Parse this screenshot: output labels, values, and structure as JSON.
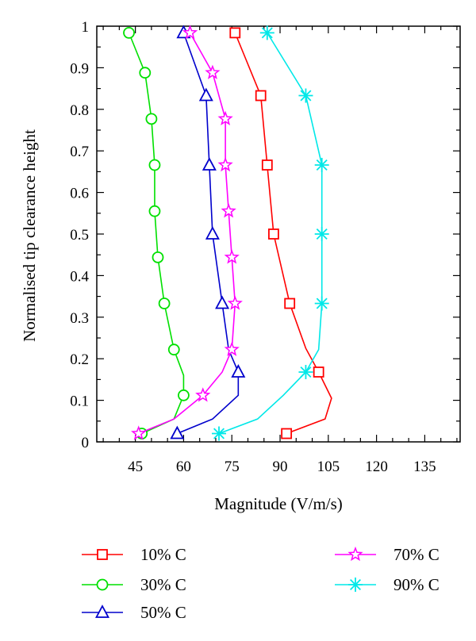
{
  "chart_data": {
    "type": "line",
    "title": "",
    "xlabel": "Magnitude (V/m/s)",
    "ylabel": "Normalised tip clearance height",
    "xlim": [
      33,
      146
    ],
    "ylim": [
      0,
      1
    ],
    "xticks": [
      "45",
      "60",
      "75",
      "90",
      "105",
      "120",
      "135"
    ],
    "yticks": [
      "0",
      "0.1",
      "0.2",
      "0.3",
      "0.4",
      "0.5",
      "0.6",
      "0.7",
      "0.8",
      "0.9",
      "1"
    ],
    "grid": false,
    "legend_position": "bottom",
    "series": [
      {
        "name": "10% C",
        "color": "#ff0000",
        "marker": "square",
        "line": [
          [
            92,
            0.02
          ],
          [
            104,
            0.055
          ],
          [
            106,
            0.105
          ],
          [
            102,
            0.168
          ],
          [
            98,
            0.225
          ],
          [
            93,
            0.333
          ],
          [
            88,
            0.5
          ],
          [
            86,
            0.666
          ],
          [
            84,
            0.833
          ],
          [
            76,
            0.984
          ]
        ],
        "markers": [
          [
            92,
            0.02
          ],
          [
            102,
            0.168
          ],
          [
            93,
            0.333
          ],
          [
            88,
            0.5
          ],
          [
            86,
            0.666
          ],
          [
            84,
            0.833
          ],
          [
            76,
            0.984
          ]
        ]
      },
      {
        "name": "30% C",
        "color": "#00e000",
        "marker": "circle",
        "line": [
          [
            47,
            0.02
          ],
          [
            57,
            0.055
          ],
          [
            60,
            0.112
          ],
          [
            60,
            0.16
          ],
          [
            57,
            0.222
          ],
          [
            54,
            0.333
          ],
          [
            52,
            0.444
          ],
          [
            51,
            0.555
          ],
          [
            51,
            0.666
          ],
          [
            50,
            0.777
          ],
          [
            48,
            0.888
          ],
          [
            43,
            0.984
          ]
        ],
        "markers": [
          [
            47,
            0.02
          ],
          [
            60,
            0.112
          ],
          [
            57,
            0.222
          ],
          [
            54,
            0.333
          ],
          [
            52,
            0.444
          ],
          [
            51,
            0.555
          ],
          [
            51,
            0.666
          ],
          [
            50,
            0.777
          ],
          [
            48,
            0.888
          ],
          [
            43,
            0.984
          ]
        ]
      },
      {
        "name": "50% C",
        "color": "#0000cc",
        "marker": "triangle",
        "line": [
          [
            58,
            0.02
          ],
          [
            69,
            0.055
          ],
          [
            77,
            0.112
          ],
          [
            77,
            0.168
          ],
          [
            74,
            0.222
          ],
          [
            72,
            0.333
          ],
          [
            69,
            0.5
          ],
          [
            68,
            0.666
          ],
          [
            67,
            0.833
          ],
          [
            60,
            0.984
          ]
        ],
        "markers": [
          [
            58,
            0.02
          ],
          [
            77,
            0.168
          ],
          [
            72,
            0.333
          ],
          [
            69,
            0.5
          ],
          [
            68,
            0.666
          ],
          [
            67,
            0.833
          ],
          [
            60,
            0.984
          ]
        ]
      },
      {
        "name": "70% C",
        "color": "#ff00ff",
        "marker": "star",
        "line": [
          [
            46,
            0.02
          ],
          [
            57,
            0.055
          ],
          [
            66,
            0.112
          ],
          [
            72,
            0.168
          ],
          [
            75,
            0.222
          ],
          [
            76,
            0.333
          ],
          [
            75,
            0.444
          ],
          [
            74,
            0.555
          ],
          [
            73,
            0.666
          ],
          [
            73,
            0.777
          ],
          [
            69,
            0.888
          ],
          [
            62,
            0.984
          ]
        ],
        "markers": [
          [
            46,
            0.02
          ],
          [
            66,
            0.112
          ],
          [
            75,
            0.222
          ],
          [
            76,
            0.333
          ],
          [
            75,
            0.444
          ],
          [
            74,
            0.555
          ],
          [
            73,
            0.666
          ],
          [
            73,
            0.777
          ],
          [
            69,
            0.888
          ],
          [
            62,
            0.984
          ]
        ]
      },
      {
        "name": "90% C",
        "color": "#00e8e8",
        "marker": "asterisk",
        "line": [
          [
            71,
            0.02
          ],
          [
            83,
            0.055
          ],
          [
            91,
            0.112
          ],
          [
            98,
            0.168
          ],
          [
            102,
            0.222
          ],
          [
            103,
            0.333
          ],
          [
            103,
            0.5
          ],
          [
            103,
            0.666
          ],
          [
            98,
            0.833
          ],
          [
            86,
            0.984
          ]
        ],
        "markers": [
          [
            71,
            0.02
          ],
          [
            98,
            0.168
          ],
          [
            103,
            0.333
          ],
          [
            103,
            0.5
          ],
          [
            103,
            0.666
          ],
          [
            98,
            0.833
          ],
          [
            86,
            0.984
          ]
        ]
      }
    ]
  }
}
